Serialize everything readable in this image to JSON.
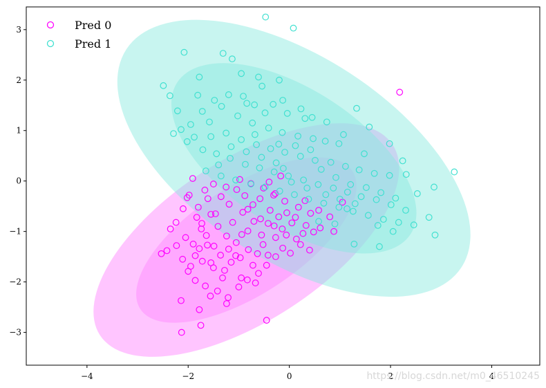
{
  "chart_data": {
    "type": "scatter",
    "title": "",
    "xlabel": "",
    "ylabel": "",
    "xlim": [
      -5.2,
      4.95
    ],
    "ylim": [
      -3.65,
      3.45
    ],
    "grid": false,
    "x_ticks": [
      -4,
      -2,
      0,
      2,
      4
    ],
    "y_ticks": [
      -3,
      -2,
      -1,
      0,
      1,
      2,
      3
    ],
    "x_tick_labels": [
      "−4",
      "−2",
      "0",
      "2",
      "4"
    ],
    "y_tick_labels": [
      "−3",
      "−2",
      "−1",
      "0",
      "1",
      "2",
      "3"
    ],
    "legend": {
      "position": "top-left",
      "entries": [
        "Pred 0",
        "Pred 1"
      ]
    },
    "series": [
      {
        "name": "Pred 0",
        "color": "#ff00ff",
        "ellipse_fill": "#ff8cff",
        "ellipses": [
          {
            "cx": -0.85,
            "cy": -1.17,
            "rx": 3.45,
            "ry": 1.6,
            "angle_deg": 33,
            "opacity": 0.5
          },
          {
            "cx": -0.85,
            "cy": -1.17,
            "rx": 2.5,
            "ry": 1.08,
            "angle_deg": 33,
            "opacity": 0.5
          }
        ],
        "points": [
          [
            -1.98,
            -0.28
          ],
          [
            -1.61,
            -0.35
          ],
          [
            -1.55,
            -0.66
          ],
          [
            -1.73,
            -0.84
          ],
          [
            -1.78,
            -1.34
          ],
          [
            -1.86,
            -1.48
          ],
          [
            -1.55,
            -1.62
          ],
          [
            -1.28,
            -1.77
          ],
          [
            -1.36,
            -1.47
          ],
          [
            -1.49,
            -1.29
          ],
          [
            -1.24,
            -1.09
          ],
          [
            -1.05,
            -1.22
          ],
          [
            -0.82,
            -0.99
          ],
          [
            -0.81,
            -1.36
          ],
          [
            -0.97,
            -1.52
          ],
          [
            -0.63,
            -1.44
          ],
          [
            -0.52,
            -1.26
          ],
          [
            -0.42,
            -1.47
          ],
          [
            -0.27,
            -1.12
          ],
          [
            -0.14,
            -0.95
          ],
          [
            0.05,
            -0.83
          ],
          [
            0.14,
            -1.15
          ],
          [
            0.27,
            -1.04
          ],
          [
            0.33,
            -0.88
          ],
          [
            0.48,
            -1.01
          ],
          [
            0.61,
            -0.93
          ],
          [
            0.88,
            -1.0
          ],
          [
            0.42,
            -0.64
          ],
          [
            0.18,
            -0.52
          ],
          [
            -0.09,
            -0.4
          ],
          [
            -0.28,
            -0.25
          ],
          [
            -0.51,
            -0.14
          ],
          [
            -0.76,
            -0.05
          ],
          [
            -0.98,
            0.03
          ],
          [
            -1.25,
            -0.12
          ],
          [
            -1.35,
            -0.31
          ],
          [
            -1.67,
            -0.18
          ],
          [
            -1.91,
            0.05
          ],
          [
            -1.74,
            -0.95
          ],
          [
            -2.05,
            -1.12
          ],
          [
            -2.23,
            -1.28
          ],
          [
            -2.42,
            -1.38
          ],
          [
            -2.11,
            -1.55
          ],
          [
            -2.0,
            -1.79
          ],
          [
            -1.86,
            -1.97
          ],
          [
            -1.66,
            -2.08
          ],
          [
            -1.42,
            -2.18
          ],
          [
            -1.21,
            -2.31
          ],
          [
            -1.0,
            -2.1
          ],
          [
            -0.83,
            -1.96
          ],
          [
            -0.61,
            -1.83
          ],
          [
            -0.45,
            -1.67
          ],
          [
            -0.27,
            -1.5
          ],
          [
            -0.13,
            -1.33
          ],
          [
            0.02,
            -1.43
          ],
          [
            0.22,
            -1.26
          ],
          [
            0.4,
            -1.37
          ],
          [
            -2.53,
            -1.44
          ],
          [
            -2.24,
            -0.82
          ],
          [
            -2.1,
            -0.55
          ],
          [
            -1.8,
            -0.52
          ],
          [
            -1.46,
            -0.65
          ],
          [
            -1.19,
            -0.46
          ],
          [
            -0.92,
            -0.62
          ],
          [
            -0.72,
            -0.47
          ],
          [
            -0.57,
            -0.75
          ],
          [
            -0.38,
            -0.58
          ],
          [
            -0.21,
            -0.71
          ],
          [
            -0.05,
            -0.63
          ],
          [
            -1.12,
            -0.82
          ],
          [
            -1.41,
            -0.9
          ],
          [
            -1.64,
            -1.08
          ],
          [
            -1.15,
            -1.61
          ],
          [
            -0.72,
            -1.67
          ],
          [
            -0.95,
            -1.92
          ],
          [
            -1.32,
            -1.92
          ],
          [
            -1.5,
            -1.72
          ],
          [
            -1.72,
            -1.59
          ],
          [
            -1.9,
            -1.25
          ],
          [
            -2.35,
            -0.95
          ],
          [
            -0.55,
            -1.07
          ],
          [
            -0.3,
            -0.89
          ],
          [
            -0.06,
            -1.07
          ],
          [
            0.12,
            -0.72
          ],
          [
            -0.88,
            -0.29
          ],
          [
            -1.04,
            -0.17
          ],
          [
            -0.58,
            -0.35
          ],
          [
            -0.4,
            -0.02
          ],
          [
            -0.17,
            0.1
          ],
          [
            -1.5,
            -0.06
          ],
          [
            -1.83,
            -0.72
          ],
          [
            -2.02,
            -0.33
          ],
          [
            -2.14,
            -2.37
          ],
          [
            -1.75,
            -2.86
          ],
          [
            -2.13,
            -3.0
          ],
          [
            -0.45,
            -2.76
          ],
          [
            -0.67,
            -2.02
          ],
          [
            -1.2,
            -1.35
          ],
          [
            -0.94,
            -1.06
          ],
          [
            -0.7,
            -0.8
          ],
          [
            -0.31,
            -0.28
          ],
          [
            0.31,
            -0.39
          ],
          [
            0.58,
            -0.58
          ],
          [
            0.8,
            -0.71
          ],
          [
            1.05,
            -0.42
          ],
          [
            -1.24,
            -2.43
          ],
          [
            2.18,
            1.76
          ],
          [
            -1.78,
            -2.55
          ],
          [
            -1.56,
            -2.28
          ],
          [
            -1.06,
            -1.48
          ],
          [
            -0.42,
            -0.84
          ],
          [
            -0.82,
            -0.56
          ],
          [
            -1.62,
            -1.27
          ],
          [
            -1.95,
            -1.69
          ]
        ]
      },
      {
        "name": "Pred 1",
        "color": "#40e0d0",
        "ellipse_fill": "#85e8de",
        "ellipses": [
          {
            "cx": 0.09,
            "cy": 0.45,
            "rx": 3.95,
            "ry": 2.02,
            "angle_deg": -33,
            "opacity": 0.45
          },
          {
            "cx": 0.09,
            "cy": 0.45,
            "rx": 2.75,
            "ry": 1.36,
            "angle_deg": -33,
            "opacity": 0.45
          }
        ],
        "points": [
          [
            -0.47,
            3.25
          ],
          [
            0.08,
            3.03
          ],
          [
            -2.08,
            2.55
          ],
          [
            -1.31,
            2.53
          ],
          [
            -1.13,
            2.42
          ],
          [
            -2.49,
            1.89
          ],
          [
            -1.78,
            2.06
          ],
          [
            -0.95,
            2.13
          ],
          [
            -0.61,
            2.06
          ],
          [
            -0.54,
            1.88
          ],
          [
            -0.2,
            2.0
          ],
          [
            -2.36,
            1.69
          ],
          [
            -1.81,
            1.7
          ],
          [
            -1.48,
            1.6
          ],
          [
            -1.2,
            1.71
          ],
          [
            -0.91,
            1.68
          ],
          [
            -0.69,
            1.51
          ],
          [
            -0.48,
            1.35
          ],
          [
            -0.13,
            1.6
          ],
          [
            0.23,
            1.43
          ],
          [
            0.45,
            1.26
          ],
          [
            -2.21,
            1.39
          ],
          [
            -1.72,
            1.38
          ],
          [
            -1.34,
            1.48
          ],
          [
            -1.02,
            1.29
          ],
          [
            -0.73,
            1.15
          ],
          [
            -0.41,
            1.05
          ],
          [
            -0.14,
            0.96
          ],
          [
            0.17,
            0.89
          ],
          [
            0.47,
            0.84
          ],
          [
            0.71,
            0.79
          ],
          [
            0.98,
            0.74
          ],
          [
            -2.14,
            1.02
          ],
          [
            -1.88,
            0.87
          ],
          [
            -1.55,
            0.88
          ],
          [
            -1.25,
            0.95
          ],
          [
            -0.95,
            0.82
          ],
          [
            -0.65,
            0.72
          ],
          [
            -0.37,
            0.64
          ],
          [
            -0.09,
            0.57
          ],
          [
            0.22,
            0.49
          ],
          [
            0.51,
            0.41
          ],
          [
            0.82,
            0.37
          ],
          [
            1.11,
            0.29
          ],
          [
            1.38,
            0.22
          ],
          [
            1.68,
            0.15
          ],
          [
            1.98,
            0.11
          ],
          [
            2.31,
            0.13
          ],
          [
            -2.02,
            0.78
          ],
          [
            -1.71,
            0.62
          ],
          [
            -1.44,
            0.54
          ],
          [
            -1.17,
            0.45
          ],
          [
            -0.87,
            0.33
          ],
          [
            -0.59,
            0.26
          ],
          [
            -0.3,
            0.18
          ],
          [
            -0.02,
            0.1
          ],
          [
            0.28,
            0.02
          ],
          [
            0.57,
            -0.07
          ],
          [
            0.87,
            -0.14
          ],
          [
            1.15,
            -0.22
          ],
          [
            1.42,
            -0.31
          ],
          [
            1.72,
            -0.37
          ],
          [
            2.01,
            -0.47
          ],
          [
            2.3,
            -0.58
          ],
          [
            -1.65,
            0.2
          ],
          [
            -1.35,
            0.1
          ],
          [
            -1.06,
            0.02
          ],
          [
            -0.76,
            -0.06
          ],
          [
            -0.48,
            -0.12
          ],
          [
            -0.19,
            -0.2
          ],
          [
            0.1,
            -0.27
          ],
          [
            0.38,
            -0.36
          ],
          [
            0.68,
            -0.44
          ],
          [
            0.98,
            -0.52
          ],
          [
            1.26,
            -0.6
          ],
          [
            1.56,
            -0.68
          ],
          [
            1.86,
            -0.76
          ],
          [
            2.16,
            -0.82
          ],
          [
            2.46,
            -0.87
          ],
          [
            2.76,
            -0.72
          ],
          [
            1.28,
            -1.25
          ],
          [
            1.78,
            -1.3
          ],
          [
            3.26,
            0.18
          ],
          [
            2.88,
            -1.07
          ],
          [
            2.86,
            -0.12
          ],
          [
            2.53,
            -0.25
          ],
          [
            1.33,
            1.44
          ],
          [
            1.58,
            1.07
          ],
          [
            1.98,
            0.74
          ],
          [
            2.24,
            0.4
          ],
          [
            1.48,
            0.54
          ],
          [
            1.07,
            0.92
          ],
          [
            0.74,
            1.17
          ],
          [
            0.31,
            1.24
          ],
          [
            -0.04,
            1.34
          ],
          [
            -0.32,
            1.52
          ],
          [
            -0.84,
            1.54
          ],
          [
            -1.58,
            1.17
          ],
          [
            -1.95,
            1.12
          ],
          [
            -2.29,
            0.94
          ],
          [
            -1.4,
            0.32
          ],
          [
            -0.68,
            0.92
          ],
          [
            -0.21,
            0.73
          ],
          [
            0.63,
            0.23
          ],
          [
            0.92,
            0.07
          ],
          [
            1.21,
            -0.07
          ],
          [
            1.52,
            -0.13
          ],
          [
            1.81,
            -0.23
          ],
          [
            2.1,
            -0.34
          ],
          [
            0.35,
            -0.14
          ],
          [
            0.04,
            -0.02
          ],
          [
            -0.26,
            0.36
          ],
          [
            -0.55,
            0.47
          ],
          [
            -0.85,
            0.58
          ],
          [
            -1.15,
            0.68
          ],
          [
            0.72,
            -0.27
          ],
          [
            1.0,
            -0.36
          ],
          [
            1.3,
            -0.45
          ],
          [
            0.42,
            0.62
          ],
          [
            0.12,
            0.7
          ],
          [
            -0.12,
            0.25
          ],
          [
            1.75,
            -0.88
          ],
          [
            2.05,
            -1.0
          ],
          [
            0.58,
            -0.8
          ],
          [
            0.9,
            -0.85
          ],
          [
            1.14,
            -0.55
          ]
        ]
      }
    ],
    "watermark": "https://blog.csdn.net/m0_46510245"
  }
}
